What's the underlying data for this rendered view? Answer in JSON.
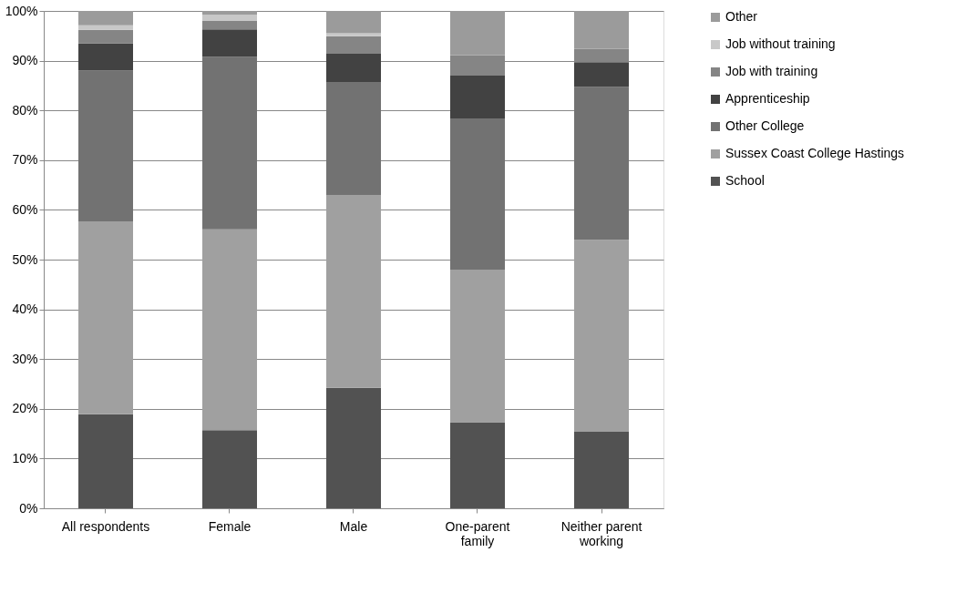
{
  "chart_data": {
    "type": "bar",
    "stacked": true,
    "categories": [
      "All respondents",
      "Female",
      "Male",
      "One-parent family",
      "Neither parent working"
    ],
    "series": [
      {
        "name": "School",
        "color": "#525252",
        "values": [
          18.9,
          15.7,
          24.2,
          17.3,
          15.4
        ]
      },
      {
        "name": "Sussex Coast College Hastings",
        "color": "#a0a0a0",
        "values": [
          38.7,
          40.4,
          38.8,
          30.7,
          38.6
        ]
      },
      {
        "name": "Other College",
        "color": "#727272",
        "values": [
          30.4,
          34.7,
          22.7,
          30.4,
          30.7
        ]
      },
      {
        "name": "Apprenticeship",
        "color": "#424242",
        "values": [
          5.5,
          5.5,
          5.7,
          8.6,
          5.0
        ]
      },
      {
        "name": "Job with training",
        "color": "#858585",
        "values": [
          2.7,
          1.7,
          3.5,
          4.1,
          2.7
        ]
      },
      {
        "name": "Job without training",
        "color": "#c8c8c8",
        "values": [
          0.9,
          1.2,
          0.6,
          0,
          0
        ]
      },
      {
        "name": "Other",
        "color": "#9b9b9b",
        "values": [
          2.9,
          0.8,
          4.5,
          8.9,
          7.6
        ]
      }
    ],
    "ylim": [
      0,
      100
    ],
    "yticks": [
      {
        "value": 0,
        "label": "0%"
      },
      {
        "value": 10,
        "label": "10%"
      },
      {
        "value": 20,
        "label": "20%"
      },
      {
        "value": 30,
        "label": "30%"
      },
      {
        "value": 40,
        "label": "40%"
      },
      {
        "value": 50,
        "label": "50%"
      },
      {
        "value": 60,
        "label": "60%"
      },
      {
        "value": 70,
        "label": "70%"
      },
      {
        "value": 80,
        "label": "80%"
      },
      {
        "value": 90,
        "label": "90%"
      },
      {
        "value": 100,
        "label": "100%"
      }
    ],
    "grid": "y",
    "legend": "right"
  }
}
